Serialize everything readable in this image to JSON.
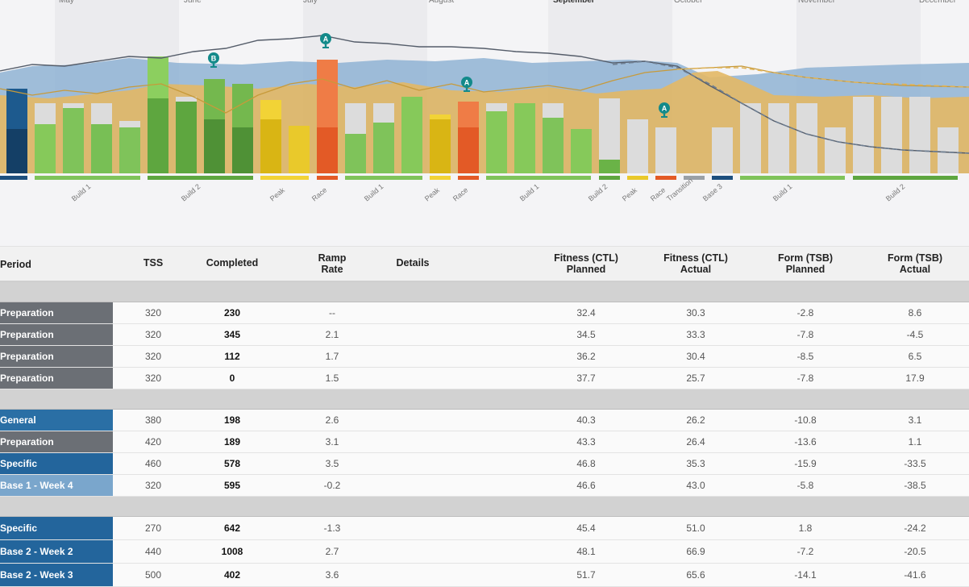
{
  "colors": {
    "prep": "#6b6f75",
    "general": "#2a6fa5",
    "specific": "#23659c",
    "base": "#7aa6cc"
  },
  "chart": {
    "months": [
      "May",
      "June",
      "July",
      "August",
      "September",
      "October",
      "November",
      "December"
    ],
    "phases": [
      "Build 1",
      "Build 2",
      "Peak",
      "Race",
      "Build 1",
      "Peak",
      "Race",
      "Build 1",
      "Build 2",
      "Peak",
      "Race",
      "Transition",
      "Base 3",
      "Build 1",
      "Build 2"
    ],
    "markers": [
      "B",
      "A",
      "A",
      "A"
    ]
  },
  "table": {
    "headers": {
      "period": "Period",
      "tss": "TSS",
      "completed": "Completed",
      "ramp1": "Ramp",
      "ramp2": "Rate",
      "details": "Details",
      "ctlp1": "Fitness (CTL)",
      "ctlp2": "Planned",
      "ctla1": "Fitness (CTL)",
      "ctla2": "Actual",
      "tsbp1": "Form (TSB)",
      "tsbp2": "Planned",
      "tsba1": "Form (TSB)",
      "tsba2": "Actual"
    },
    "groups": [
      {
        "rows": [
          {
            "period": "Preparation",
            "color": "#6b6f75",
            "tss": "320",
            "completed": "230",
            "ramp": "--",
            "ctl_planned": "32.4",
            "ctl_actual": "30.3",
            "tsb_planned": "-2.8",
            "tsb_actual": "8.6"
          },
          {
            "period": "Preparation",
            "color": "#6b6f75",
            "tss": "320",
            "completed": "345",
            "ramp": "2.1",
            "ctl_planned": "34.5",
            "ctl_actual": "33.3",
            "tsb_planned": "-7.8",
            "tsb_actual": "-4.5"
          },
          {
            "period": "Preparation",
            "color": "#6b6f75",
            "tss": "320",
            "completed": "112",
            "ramp": "1.7",
            "ctl_planned": "36.2",
            "ctl_actual": "30.4",
            "tsb_planned": "-8.5",
            "tsb_actual": "6.5"
          },
          {
            "period": "Preparation",
            "color": "#6b6f75",
            "tss": "320",
            "completed": "0",
            "ramp": "1.5",
            "ctl_planned": "37.7",
            "ctl_actual": "25.7",
            "tsb_planned": "-7.8",
            "tsb_actual": "17.9"
          }
        ]
      },
      {
        "rows": [
          {
            "period": "General",
            "color": "#2a6fa5",
            "tss": "380",
            "completed": "198",
            "ramp": "2.6",
            "ctl_planned": "40.3",
            "ctl_actual": "26.2",
            "tsb_planned": "-10.8",
            "tsb_actual": "3.1"
          },
          {
            "period": "Preparation",
            "color": "#6b6f75",
            "tss": "420",
            "completed": "189",
            "ramp": "3.1",
            "ctl_planned": "43.3",
            "ctl_actual": "26.4",
            "tsb_planned": "-13.6",
            "tsb_actual": "1.1"
          },
          {
            "period": "Specific",
            "color": "#23659c",
            "tss": "460",
            "completed": "578",
            "ramp": "3.5",
            "ctl_planned": "46.8",
            "ctl_actual": "35.3",
            "tsb_planned": "-15.9",
            "tsb_actual": "-33.5"
          },
          {
            "period": "Base 1 - Week 4",
            "color": "#7aa6cc",
            "tss": "320",
            "completed": "595",
            "ramp": "-0.2",
            "ctl_planned": "46.6",
            "ctl_actual": "43.0",
            "tsb_planned": "-5.8",
            "tsb_actual": "-38.5"
          }
        ]
      },
      {
        "rows": [
          {
            "period": "Specific",
            "color": "#23659c",
            "tss": "270",
            "completed": "642",
            "ramp": "-1.3",
            "ctl_planned": "45.4",
            "ctl_actual": "51.0",
            "tsb_planned": "1.8",
            "tsb_actual": "-24.2"
          },
          {
            "period": "Base 2 - Week 2",
            "color": "#23659c",
            "tss": "440",
            "completed": "1008",
            "ramp": "2.7",
            "ctl_planned": "48.1",
            "ctl_actual": "66.9",
            "tsb_planned": "-7.2",
            "tsb_actual": "-20.5"
          },
          {
            "period": "Base 2 - Week 3",
            "color": "#23659c",
            "tss": "500",
            "completed": "402",
            "ramp": "3.6",
            "ctl_planned": "51.7",
            "ctl_actual": "65.6",
            "tsb_planned": "-14.1",
            "tsb_actual": "-41.6"
          }
        ]
      }
    ]
  }
}
